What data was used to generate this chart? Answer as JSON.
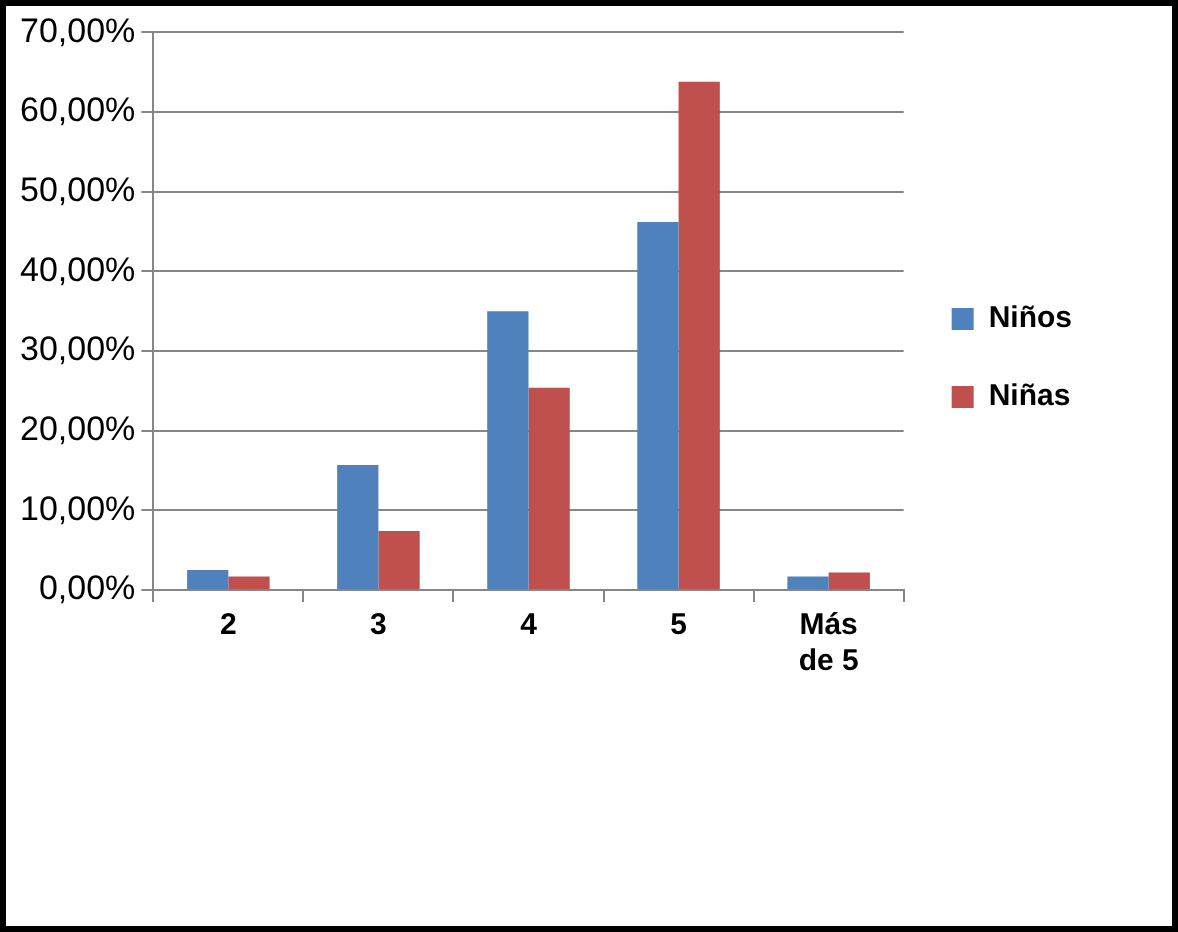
{
  "chart_data": {
    "type": "bar",
    "categories": [
      "2",
      "3",
      "4",
      "5",
      "Más de 5"
    ],
    "series": [
      {
        "name": "Niños",
        "color": "#4f81bd",
        "values": [
          2.5,
          15.7,
          35.0,
          46.2,
          1.7
        ]
      },
      {
        "name": "Niñas",
        "color": "#c0504d",
        "values": [
          1.7,
          7.4,
          25.4,
          63.8,
          2.2
        ]
      }
    ],
    "ylim": [
      0,
      70
    ],
    "yticks": [
      {
        "value": 0,
        "label": "0,00%"
      },
      {
        "value": 10,
        "label": "10,00%"
      },
      {
        "value": 20,
        "label": "20,00%"
      },
      {
        "value": 30,
        "label": "30,00%"
      },
      {
        "value": 40,
        "label": "40,00%"
      },
      {
        "value": 50,
        "label": "50,00%"
      },
      {
        "value": 60,
        "label": "60,00%"
      },
      {
        "value": 70,
        "label": "70,00%"
      }
    ],
    "grid": "y",
    "legend": "right"
  }
}
